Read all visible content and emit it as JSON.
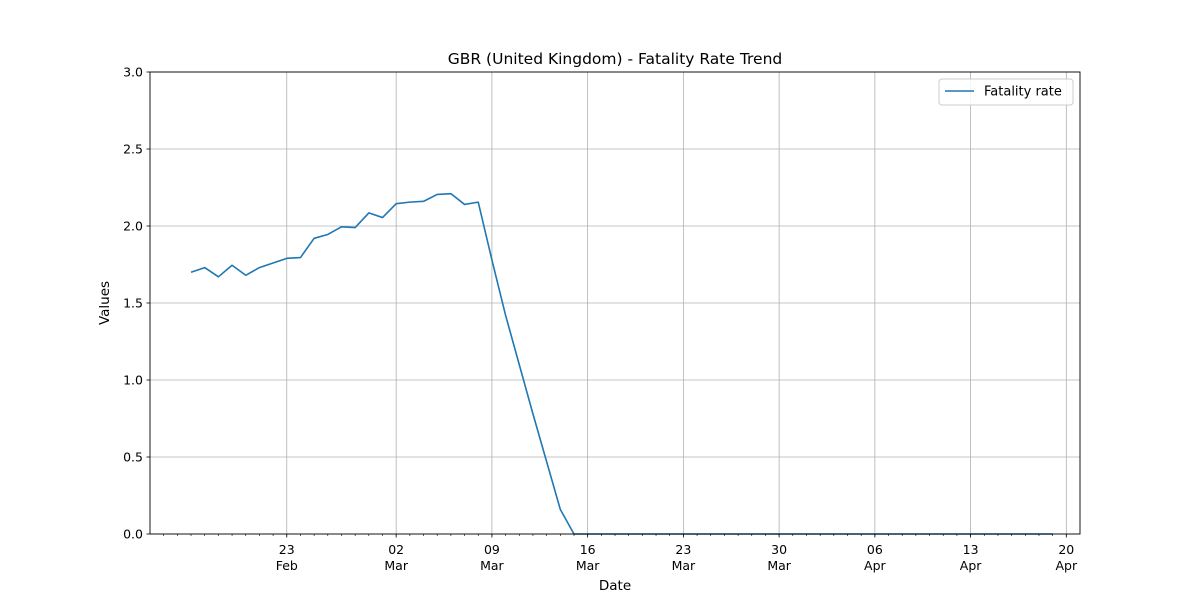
{
  "chart_data": {
    "type": "line",
    "title": "GBR (United Kingdom) - Fatality Rate Trend",
    "xlabel": "Date",
    "ylabel": "Values",
    "x_axis_type": "date",
    "year": 2020,
    "xlim": [
      "2020-02-13",
      "2020-04-21"
    ],
    "ylim": [
      0,
      3
    ],
    "yticks": [
      0,
      0.5,
      1,
      1.5,
      2,
      2.5,
      3
    ],
    "ytick_labels": [
      "0.0",
      "0.5",
      "1.0",
      "1.5",
      "2.0",
      "2.5",
      "3.0"
    ],
    "xticks": [
      {
        "date": "2020-02-23",
        "day": "23",
        "month": "Feb"
      },
      {
        "date": "2020-03-02",
        "day": "02",
        "month": "Mar"
      },
      {
        "date": "2020-03-09",
        "day": "09",
        "month": "Mar"
      },
      {
        "date": "2020-03-16",
        "day": "16",
        "month": "Mar"
      },
      {
        "date": "2020-03-23",
        "day": "23",
        "month": "Mar"
      },
      {
        "date": "2020-03-30",
        "day": "30",
        "month": "Mar"
      },
      {
        "date": "2020-04-06",
        "day": "06",
        "month": "Apr"
      },
      {
        "date": "2020-04-13",
        "day": "13",
        "month": "Apr"
      },
      {
        "date": "2020-04-20",
        "day": "20",
        "month": "Apr"
      }
    ],
    "grid": true,
    "legend_position": "top-right",
    "series": [
      {
        "name": "Fatality rate",
        "color": "#1f77b4",
        "x": [
          "2020-02-16",
          "2020-02-17",
          "2020-02-18",
          "2020-02-19",
          "2020-02-20",
          "2020-02-21",
          "2020-02-22",
          "2020-02-23",
          "2020-02-24",
          "2020-02-25",
          "2020-02-26",
          "2020-02-27",
          "2020-02-28",
          "2020-02-29",
          "2020-03-01",
          "2020-03-02",
          "2020-03-03",
          "2020-03-04",
          "2020-03-05",
          "2020-03-06",
          "2020-03-07",
          "2020-03-08",
          "2020-03-09",
          "2020-03-10",
          "2020-03-11",
          "2020-03-12",
          "2020-03-13",
          "2020-03-14",
          "2020-03-15",
          "2020-03-16",
          "2020-03-17",
          "2020-03-18",
          "2020-03-19",
          "2020-03-20",
          "2020-03-21",
          "2020-03-22",
          "2020-03-23",
          "2020-03-24",
          "2020-03-25",
          "2020-03-26",
          "2020-03-27",
          "2020-03-28",
          "2020-03-29",
          "2020-03-30",
          "2020-03-31",
          "2020-04-01",
          "2020-04-02",
          "2020-04-03",
          "2020-04-04",
          "2020-04-05",
          "2020-04-06",
          "2020-04-07",
          "2020-04-08",
          "2020-04-09",
          "2020-04-10",
          "2020-04-11",
          "2020-04-12",
          "2020-04-13",
          "2020-04-14",
          "2020-04-15",
          "2020-04-16",
          "2020-04-17",
          "2020-04-18",
          "2020-04-19"
        ],
        "values": [
          1.7,
          1.73,
          1.67,
          1.745,
          1.68,
          1.73,
          1.76,
          1.79,
          1.795,
          1.92,
          1.945,
          1.995,
          1.99,
          2.085,
          2.055,
          2.145,
          2.155,
          2.16,
          2.205,
          2.21,
          2.14,
          2.155,
          1.78,
          1.42,
          1.1,
          0.78,
          0.47,
          0.16,
          0.0,
          0.0,
          0.0,
          0.0,
          0.0,
          0.0,
          0.0,
          0.0,
          0.0,
          0.0,
          0.0,
          0.0,
          0.0,
          0.0,
          0.0,
          0.0,
          0.0,
          0.0,
          0.0,
          0.0,
          0.0,
          0.0,
          0.0,
          0.0,
          0.0,
          0.0,
          0.0,
          0.0,
          0.0,
          0.0,
          0.0,
          0.0,
          0.0,
          0.0,
          0.0,
          0.0
        ]
      }
    ]
  }
}
